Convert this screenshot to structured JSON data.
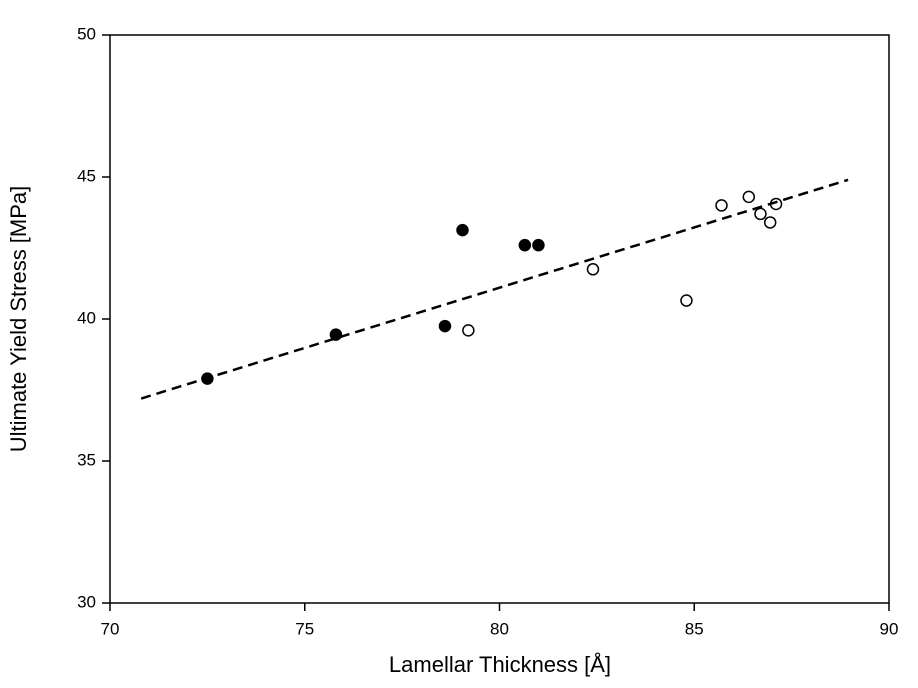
{
  "chart_data": {
    "type": "scatter",
    "x_label": "Lamellar Thickness [Å]",
    "y_label": "Ultimate Yield Stress [MPa]",
    "xlim": [
      70,
      90
    ],
    "xticks": [
      70,
      75,
      80,
      85,
      90
    ],
    "ylim": [
      30,
      50
    ],
    "yticks": [
      30,
      35,
      40,
      45,
      50
    ],
    "series": [
      {
        "type": "scatter",
        "color": "#000000",
        "filled": true,
        "x": [
          72.5,
          75.8,
          78.6,
          79.05,
          80.65,
          81.0
        ],
        "values": [
          37.9,
          39.45,
          39.75,
          43.13,
          42.6,
          42.6
        ]
      },
      {
        "type": "scatter",
        "color": "#000000",
        "filled": false,
        "x": [
          79.2,
          82.4,
          84.8,
          85.7,
          86.4,
          86.7,
          86.95,
          87.1
        ],
        "values": [
          39.6,
          41.75,
          40.65,
          44.0,
          44.3,
          43.7,
          43.4,
          44.05
        ]
      },
      {
        "type": "line",
        "color": "#000000",
        "dashed": true,
        "x": [
          70.8,
          88.95
        ],
        "values": [
          37.2,
          44.9
        ]
      }
    ]
  }
}
